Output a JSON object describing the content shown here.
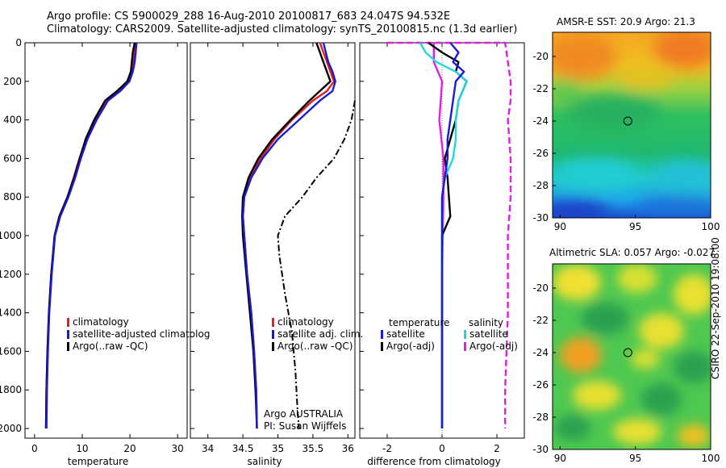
{
  "header": {
    "line1": "Argo profile: CS 5900029_288 16-Aug-2010 20100817_683 24.047S 94.532E",
    "line2": "Climatology: CARS2009. Satellite-adjusted climatology: synTS_20100815.nc (1.3d earlier)"
  },
  "credit": "CSIRO 22-Sep-2010 19:08:00",
  "colors": {
    "climatology": "#e0201b",
    "satellite": "#1a1ad6",
    "argo": "#000000",
    "satellite_sal": "#1ed8e0",
    "argo_sal": "#e020e0"
  },
  "chart_data": [
    {
      "type": "line",
      "xlabel": "temperature",
      "xlim": [
        -2,
        32
      ],
      "ylim": [
        2050,
        0
      ],
      "xticks": [
        0,
        10,
        20,
        30
      ],
      "yticks": [
        0,
        200,
        400,
        600,
        800,
        1000,
        1200,
        1400,
        1600,
        1800,
        2000
      ],
      "series": [
        {
          "name": "climatology",
          "x": [
            21.2,
            21.0,
            20.7,
            20.2,
            19.4,
            17.5,
            15.0,
            12.7,
            10.8,
            9.4,
            8.2,
            6.9,
            5.2,
            4.2,
            3.5,
            3.0,
            2.7,
            2.5,
            2.4
          ],
          "y": [
            0,
            50,
            100,
            150,
            200,
            250,
            300,
            400,
            500,
            600,
            700,
            800,
            900,
            1000,
            1200,
            1400,
            1600,
            1800,
            2000
          ]
        },
        {
          "name": "satellite-adjusted climatology",
          "x": [
            21.4,
            21.2,
            21.0,
            20.6,
            19.9,
            18.0,
            15.4,
            13.0,
            11.1,
            9.7,
            8.5,
            7.1,
            5.4,
            4.3,
            3.6,
            3.1,
            2.8,
            2.6,
            2.5
          ],
          "y": [
            0,
            50,
            100,
            150,
            200,
            250,
            300,
            400,
            500,
            600,
            700,
            800,
            900,
            1000,
            1200,
            1400,
            1600,
            1800,
            2000
          ]
        },
        {
          "name": "Argo(..raw -QC)",
          "x": [
            21.0,
            20.6,
            20.4,
            20.2,
            19.5,
            17.3,
            14.8,
            12.5,
            10.7,
            9.5,
            8.3,
            6.9,
            5.2,
            4.2,
            3.5,
            3.0,
            2.7,
            2.5,
            2.4
          ],
          "y": [
            0,
            50,
            100,
            150,
            200,
            250,
            300,
            400,
            500,
            600,
            700,
            800,
            900,
            1000,
            1200,
            1400,
            1600,
            1800,
            2000
          ]
        }
      ],
      "legend": [
        "climatology",
        "satellite-adjusted climatolog",
        "Argo(..raw -QC)"
      ]
    },
    {
      "type": "line",
      "xlabel": "salinity",
      "xlim": [
        33.75,
        36.1
      ],
      "ylim": [
        2050,
        0
      ],
      "xticks": [
        34,
        34.5,
        35,
        35.5,
        36
      ],
      "series": [
        {
          "name": "climatology",
          "x": [
            35.6,
            35.7,
            35.75,
            35.8,
            35.7,
            35.5,
            35.2,
            34.95,
            34.75,
            34.6,
            34.52,
            34.5,
            34.52,
            34.56,
            34.62,
            34.66,
            34.69,
            34.7
          ],
          "y": [
            0,
            100,
            150,
            200,
            250,
            300,
            400,
            500,
            600,
            700,
            800,
            900,
            1000,
            1200,
            1400,
            1600,
            1800,
            2000
          ]
        },
        {
          "name": "satellite adj. clim.",
          "x": [
            35.65,
            35.72,
            35.78,
            35.82,
            35.78,
            35.6,
            35.3,
            35.0,
            34.78,
            34.62,
            34.52,
            34.5,
            34.52,
            34.56,
            34.62,
            34.66,
            34.69,
            34.7
          ],
          "y": [
            0,
            100,
            150,
            200,
            250,
            300,
            400,
            500,
            600,
            700,
            800,
            900,
            1000,
            1200,
            1400,
            1600,
            1800,
            2000
          ]
        },
        {
          "name": "Argo(..raw -QC)",
          "x": [
            35.55,
            35.65,
            35.7,
            35.75,
            35.6,
            35.45,
            35.18,
            34.92,
            34.72,
            34.58,
            34.5,
            34.49,
            34.5,
            34.55,
            34.6,
            34.65,
            34.68,
            34.7
          ],
          "y": [
            0,
            100,
            150,
            200,
            250,
            300,
            400,
            500,
            600,
            700,
            800,
            900,
            1000,
            1200,
            1400,
            1600,
            1800,
            2000
          ]
        },
        {
          "name": "Argo raw",
          "style": "dashdot",
          "x": [
            36.1,
            36.05,
            35.95,
            35.8,
            35.55,
            35.35,
            35.1,
            35.0,
            35.02,
            35.1,
            35.2,
            35.25,
            35.28,
            35.3
          ],
          "y": [
            300,
            400,
            500,
            600,
            700,
            800,
            900,
            1000,
            1100,
            1300,
            1500,
            1700,
            1900,
            2000
          ]
        }
      ],
      "legend": [
        "climatology",
        "satellite adj. clim.",
        "Argo(..raw -QC)"
      ],
      "annotations": [
        "Argo AUSTRALIA",
        "PI: Susan Wijffels"
      ]
    },
    {
      "type": "line",
      "xlabel": "difference from climatology",
      "xlim": [
        -3,
        3
      ],
      "ylim": [
        2050,
        0
      ],
      "xticks": [
        -2,
        0,
        2
      ],
      "series": [
        {
          "name": "temperature satellite",
          "x": [
            0.3,
            0.6,
            0.4,
            0.8,
            0.5,
            0.4,
            0.3,
            0.2,
            0.2,
            0.1,
            0,
            0,
            0,
            0,
            0
          ],
          "y": [
            0,
            50,
            100,
            150,
            200,
            300,
            400,
            500,
            600,
            700,
            800,
            1000,
            1400,
            1800,
            2000
          ]
        },
        {
          "name": "temperature Argo(-adj)",
          "x": [
            -0.5,
            0.0,
            0.6,
            0.5,
            0.9,
            0.6,
            0.5,
            0.3,
            0.1,
            0.2,
            0.3,
            0.0,
            0.0,
            0
          ],
          "y": [
            0,
            50,
            100,
            150,
            200,
            300,
            400,
            500,
            600,
            700,
            900,
            1000,
            1400,
            2000
          ]
        },
        {
          "name": "salinity satellite",
          "x": [
            -0.8,
            -0.6,
            -0.2,
            0.5,
            0.9,
            0.6,
            0.5,
            0.5,
            0.4,
            0.1,
            0.0,
            0.0,
            0.0,
            0.0
          ],
          "y": [
            0,
            50,
            100,
            150,
            200,
            300,
            400,
            500,
            600,
            700,
            800,
            1000,
            1400,
            2000
          ]
        },
        {
          "name": "salinity Argo(-adj)",
          "style": "dashed",
          "x": [
            -2.0,
            2.3,
            2.4,
            2.5,
            2.5,
            2.4,
            2.5,
            2.5,
            2.4,
            2.4,
            2.3,
            2.3
          ],
          "y": [
            0,
            0,
            100,
            200,
            300,
            400,
            600,
            800,
            1000,
            1400,
            1800,
            2000
          ]
        },
        {
          "name": "salinity Argo(-adj) solid",
          "x": [
            -0.3,
            -0.3,
            0.0,
            -0.1,
            0.05,
            0.05,
            0.0,
            0.0
          ],
          "y": [
            0,
            100,
            200,
            400,
            600,
            800,
            1200,
            2000
          ]
        }
      ],
      "legend_titles": [
        "temperature",
        "salinity"
      ],
      "legend": [
        "satellite",
        "Argo(-adj)",
        "satellite",
        "Argo(-adj)"
      ]
    },
    {
      "type": "heatmap",
      "title": "AMSR-E SST: 20.9 Argo: 21.3",
      "xlim": [
        89.5,
        100
      ],
      "ylim": [
        -30,
        -18.5
      ],
      "xticks": [
        90,
        95,
        100
      ],
      "yticks": [
        -20,
        -22,
        -24,
        -26,
        -28,
        -30
      ],
      "marker": [
        94.5,
        -24
      ]
    },
    {
      "type": "heatmap",
      "title": "Altimetric SLA: 0.057 Argo: -0.027",
      "xlim": [
        89.5,
        100
      ],
      "ylim": [
        -30,
        -18.5
      ],
      "xticks": [
        90,
        95,
        100
      ],
      "yticks": [
        -20,
        -22,
        -24,
        -26,
        -28,
        -30
      ],
      "marker": [
        94.5,
        -24
      ]
    }
  ]
}
